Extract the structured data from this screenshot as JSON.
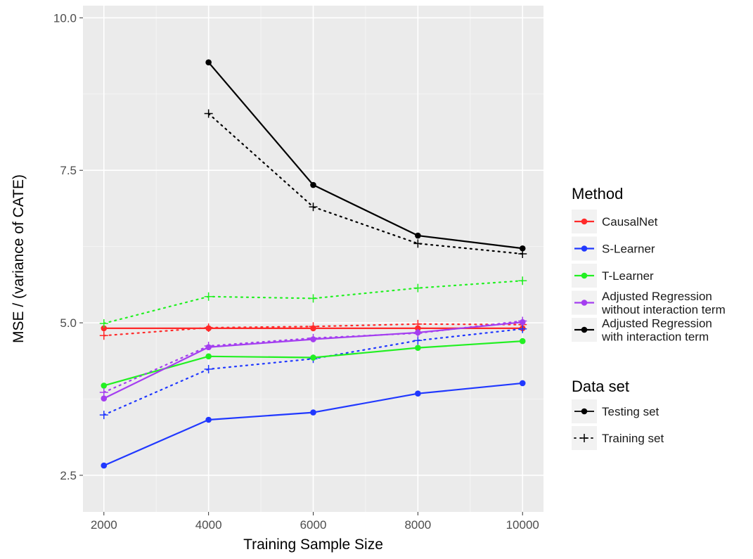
{
  "chart_data": {
    "type": "line",
    "xlabel": "Training Sample Size",
    "ylabel": "MSE / (variance of CATE)",
    "xlim": [
      1600,
      10400
    ],
    "ylim": [
      1.9,
      10.2
    ],
    "x_ticks": [
      "2000",
      "4000",
      "6000",
      "8000",
      "10000"
    ],
    "x_tick_values": [
      2000,
      4000,
      6000,
      8000,
      10000
    ],
    "y_ticks": [
      "2.5",
      "5.0",
      "7.5",
      "10.0"
    ],
    "y_tick_values": [
      2.5,
      5.0,
      7.5,
      10.0
    ],
    "grid": true,
    "panel_background": "#ebebeb",
    "legend_position": "right",
    "legend_method_title": "Method",
    "legend_dataset_title": "Data set",
    "methods": [
      {
        "key": "causalnet",
        "label_lines": [
          "CausalNet"
        ],
        "color": "#ff2a2a"
      },
      {
        "key": "slearner",
        "label_lines": [
          "S-Learner"
        ],
        "color": "#2038ff"
      },
      {
        "key": "tlearner",
        "label_lines": [
          "T-Learner"
        ],
        "color": "#22f022"
      },
      {
        "key": "adjreg_noint",
        "label_lines": [
          "Adjusted Regression",
          " without interaction term"
        ],
        "color": "#a43ef0"
      },
      {
        "key": "adjreg_int",
        "label_lines": [
          "Adjusted Regression",
          " with interaction term"
        ],
        "color": "#000000"
      }
    ],
    "datasets": [
      {
        "key": "testing",
        "label": "Testing set",
        "linestyle": "solid",
        "marker": "circle"
      },
      {
        "key": "training",
        "label": "Training set",
        "linestyle": "dotted",
        "marker": "plus"
      }
    ],
    "series": [
      {
        "method": "causalnet",
        "dataset": "testing",
        "x": [
          2000,
          4000,
          6000,
          8000,
          10000
        ],
        "values": [
          4.91,
          4.91,
          4.91,
          4.91,
          4.91
        ]
      },
      {
        "method": "causalnet",
        "dataset": "training",
        "x": [
          2000,
          4000,
          6000,
          8000,
          10000
        ],
        "values": [
          4.79,
          4.92,
          4.94,
          4.98,
          4.97
        ]
      },
      {
        "method": "slearner",
        "dataset": "testing",
        "x": [
          2000,
          4000,
          6000,
          8000,
          10000
        ],
        "values": [
          2.66,
          3.41,
          3.53,
          3.84,
          4.01
        ]
      },
      {
        "method": "slearner",
        "dataset": "training",
        "x": [
          2000,
          4000,
          6000,
          8000,
          10000
        ],
        "values": [
          3.49,
          4.24,
          4.41,
          4.71,
          4.9
        ]
      },
      {
        "method": "tlearner",
        "dataset": "testing",
        "x": [
          2000,
          4000,
          6000,
          8000,
          10000
        ],
        "values": [
          3.97,
          4.45,
          4.43,
          4.59,
          4.7
        ]
      },
      {
        "method": "tlearner",
        "dataset": "training",
        "x": [
          2000,
          4000,
          6000,
          8000,
          10000
        ],
        "values": [
          4.99,
          5.43,
          5.4,
          5.57,
          5.69
        ]
      },
      {
        "method": "adjreg_noint",
        "dataset": "testing",
        "x": [
          2000,
          4000,
          6000,
          8000,
          10000
        ],
        "values": [
          3.76,
          4.6,
          4.73,
          4.84,
          5.01
        ]
      },
      {
        "method": "adjreg_noint",
        "dataset": "training",
        "x": [
          2000,
          4000,
          6000,
          8000,
          10000
        ],
        "values": [
          3.86,
          4.62,
          4.75,
          4.83,
          5.03
        ]
      },
      {
        "method": "adjreg_int",
        "dataset": "testing",
        "x": [
          4000,
          6000,
          8000,
          10000
        ],
        "values": [
          9.27,
          7.26,
          6.43,
          6.22
        ]
      },
      {
        "method": "adjreg_int",
        "dataset": "training",
        "x": [
          4000,
          6000,
          8000,
          10000
        ],
        "values": [
          8.43,
          6.9,
          6.3,
          6.13
        ]
      }
    ]
  }
}
